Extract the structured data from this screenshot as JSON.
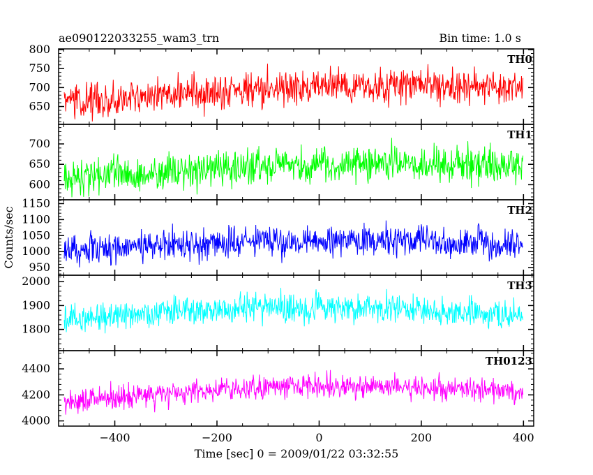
{
  "chart_data": {
    "type": "line",
    "title": "ae090122033255_wam3_trn",
    "subtitle": "Bin time: 1.0 s",
    "xlabel": "Time [sec] 0 = 2009/01/22 03:32:55",
    "ylabel": "Counts/sec",
    "xlim": [
      -510,
      420
    ],
    "x_ticks": [
      -400,
      -200,
      0,
      200,
      400
    ],
    "x_tick_labels": [
      "−400",
      "−200",
      "0",
      "200",
      "400"
    ],
    "bin_time": 1.0,
    "x_start": -499,
    "x_end": 399,
    "grid": false,
    "panels": [
      {
        "name": "TH0",
        "color": "#ff0000",
        "ylim": [
          603,
          802
        ],
        "y_ticks": [
          650,
          700,
          750,
          800
        ],
        "base_start": 660,
        "base_end": 700,
        "bump": 20,
        "noise": 40
      },
      {
        "name": "TH1",
        "color": "#00ff00",
        "ylim": [
          563,
          748
        ],
        "y_ticks": [
          600,
          650,
          700
        ],
        "base_start": 615,
        "base_end": 650,
        "bump": 15,
        "noise": 40
      },
      {
        "name": "TH2",
        "color": "#0000ff",
        "ylim": [
          926,
          1162
        ],
        "y_ticks": [
          950,
          1000,
          1050,
          1100,
          1150
        ],
        "base_start": 1000,
        "base_end": 1025,
        "bump": 20,
        "noise": 45
      },
      {
        "name": "TH3",
        "color": "#00ffff",
        "ylim": [
          1711,
          2027
        ],
        "y_ticks": [
          1800,
          1900,
          2000
        ],
        "base_start": 1840,
        "base_end": 1855,
        "bump": 45,
        "noise": 55
      },
      {
        "name": "TH0123",
        "color": "#ff00ff",
        "ylim": [
          3960,
          4540
        ],
        "y_ticks": [
          4000,
          4200,
          4400
        ],
        "base_start": 4140,
        "base_end": 4220,
        "bump": 80,
        "noise": 80
      }
    ]
  }
}
